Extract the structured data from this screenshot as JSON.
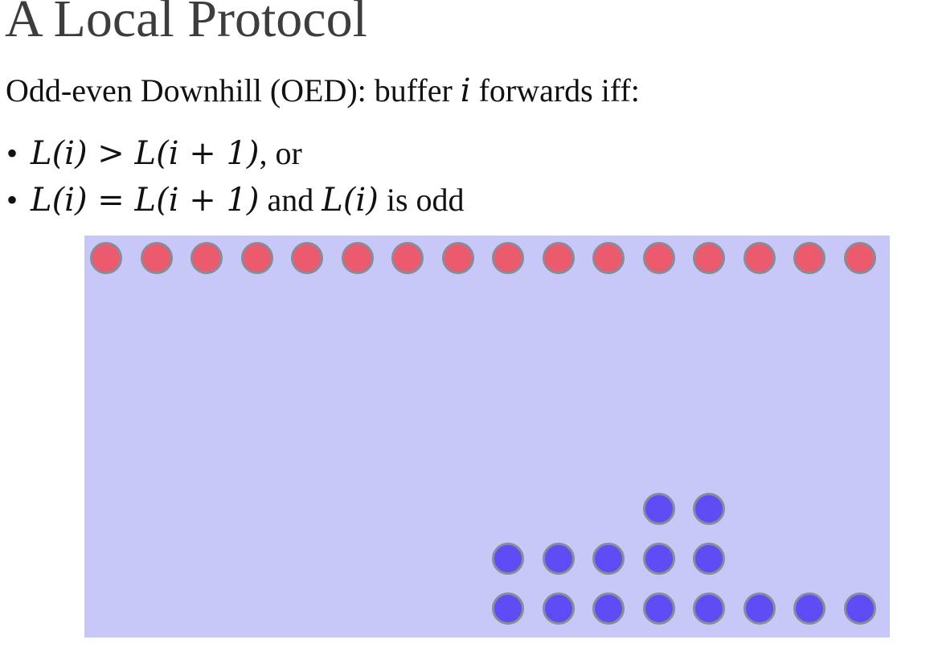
{
  "title": "A Local Protocol",
  "intro": {
    "text_before": "Odd-even Downhill (OED): buffer ",
    "var": "i",
    "text_after": " forwards iff:"
  },
  "rules": [
    {
      "lhs": "L(i)",
      "op": " > ",
      "rhs": "L(i + 1)",
      "suffix": ", or",
      "middle": "",
      "tail_math": "",
      "tail": ""
    },
    {
      "lhs": "L(i)",
      "op": " = ",
      "rhs": "L(i + 1)",
      "suffix": "",
      "middle": " and ",
      "tail_math": "L(i)",
      "tail": " is odd"
    }
  ],
  "colors": {
    "board": "#c8c8f8",
    "source_ball": "#ec5a6e",
    "queued_ball": "#604cf4",
    "ball_border": "#8a8a98"
  },
  "diagram": {
    "buffers": 16,
    "sources_per_buffer": 1,
    "loads": [
      0,
      0,
      0,
      0,
      0,
      0,
      0,
      0,
      2,
      2,
      2,
      3,
      3,
      1,
      1,
      1
    ]
  }
}
